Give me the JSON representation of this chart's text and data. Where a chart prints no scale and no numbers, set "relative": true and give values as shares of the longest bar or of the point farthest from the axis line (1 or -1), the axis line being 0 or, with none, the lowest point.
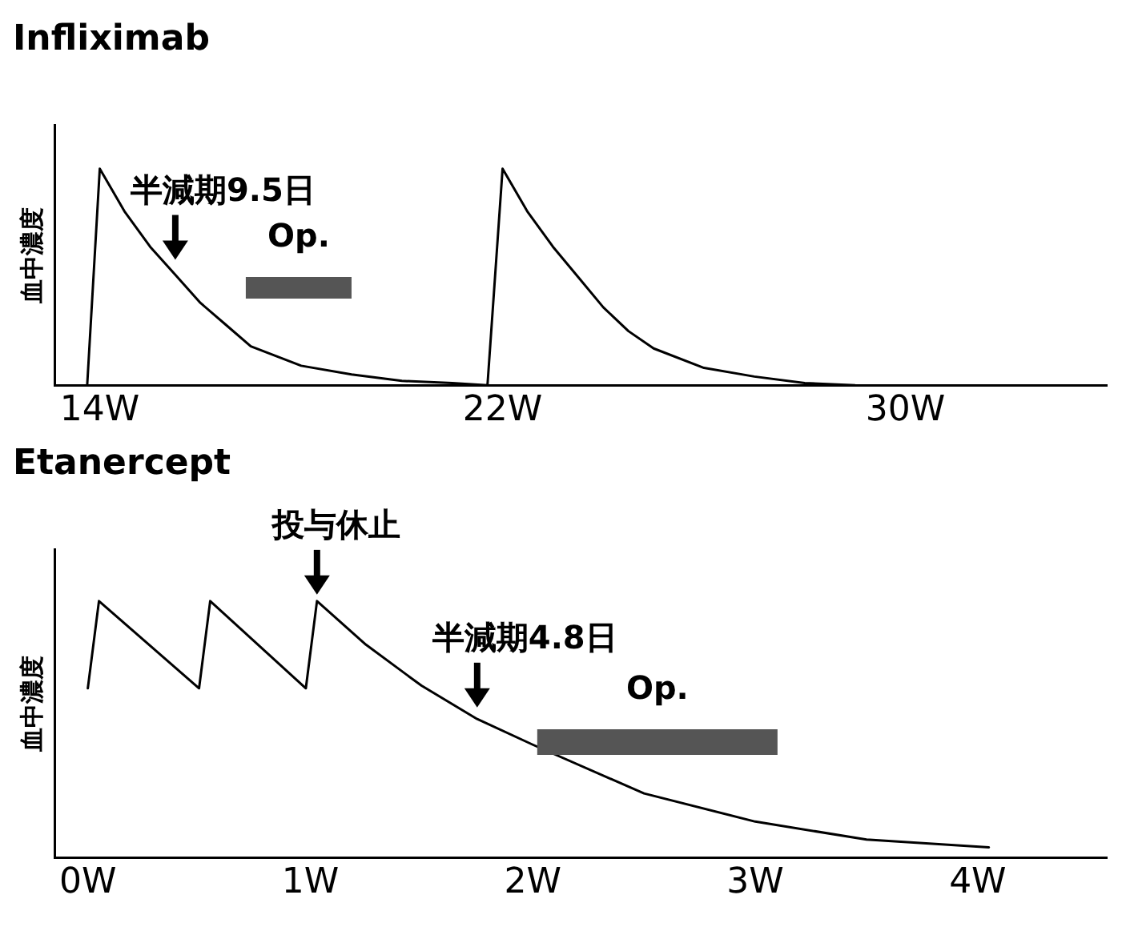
{
  "chart_data": [
    {
      "type": "line",
      "title": "Infliximab",
      "ylabel": "血中濃度",
      "relative": true,
      "grid": false,
      "legend": false,
      "marker": "none",
      "line_style": "solid",
      "xlim": [
        13.1,
        34
      ],
      "xticks": [
        {
          "value": 14,
          "label": "14W"
        },
        {
          "value": 22,
          "label": "22W"
        },
        {
          "value": 30,
          "label": "30W"
        }
      ],
      "series": [
        {
          "color": "#000000",
          "x": [
            13.75,
            14,
            14.5,
            15,
            15.5,
            16,
            16.5,
            17,
            18,
            19,
            20,
            21,
            21.7,
            22,
            22.5,
            23,
            23.5,
            24,
            24.5,
            25,
            26,
            27,
            28,
            29
          ],
          "values": [
            0,
            1,
            0.8,
            0.64,
            0.51,
            0.38,
            0.28,
            0.18,
            0.09,
            0.05,
            0.02,
            0.01,
            0,
            1,
            0.8,
            0.64,
            0.5,
            0.36,
            0.25,
            0.17,
            0.08,
            0.04,
            0.01,
            0
          ]
        }
      ],
      "bands": [
        {
          "axis": "x",
          "from": 16.9,
          "to": 19.0,
          "label": "Op.",
          "color": "#555555"
        }
      ],
      "annotations": [
        {
          "text": "半減期9.5日",
          "x": 15.5,
          "y": 0.55
        }
      ]
    },
    {
      "type": "line",
      "title": "Etanercept",
      "ylabel": "血中濃度",
      "relative": true,
      "grid": false,
      "legend": false,
      "marker": "none",
      "line_style": "solid",
      "xlim": [
        -0.15,
        4.58
      ],
      "xticks": [
        {
          "value": 0,
          "label": "0W"
        },
        {
          "value": 1,
          "label": "1W"
        },
        {
          "value": 2,
          "label": "2W"
        },
        {
          "value": 3,
          "label": "3W"
        },
        {
          "value": 4,
          "label": "4W"
        }
      ],
      "series": [
        {
          "color": "#000000",
          "x": [
            0,
            0.05,
            0.5,
            0.55,
            0.98,
            1.03,
            1.25,
            1.5,
            1.75,
            2,
            2.5,
            3,
            3.5,
            4.05
          ],
          "values": [
            0.66,
            1,
            0.66,
            1,
            0.66,
            1,
            0.83,
            0.67,
            0.54,
            0.44,
            0.25,
            0.14,
            0.07,
            0.04
          ]
        }
      ],
      "bands": [
        {
          "axis": "x",
          "from": 2.02,
          "to": 3.1,
          "label": "Op.",
          "color": "#555555"
        }
      ],
      "annotations": [
        {
          "text": "投与休止",
          "x": 1.03,
          "y": 1
        },
        {
          "text": "半減期4.8日",
          "x": 1.75,
          "y": 0.56
        }
      ]
    }
  ]
}
